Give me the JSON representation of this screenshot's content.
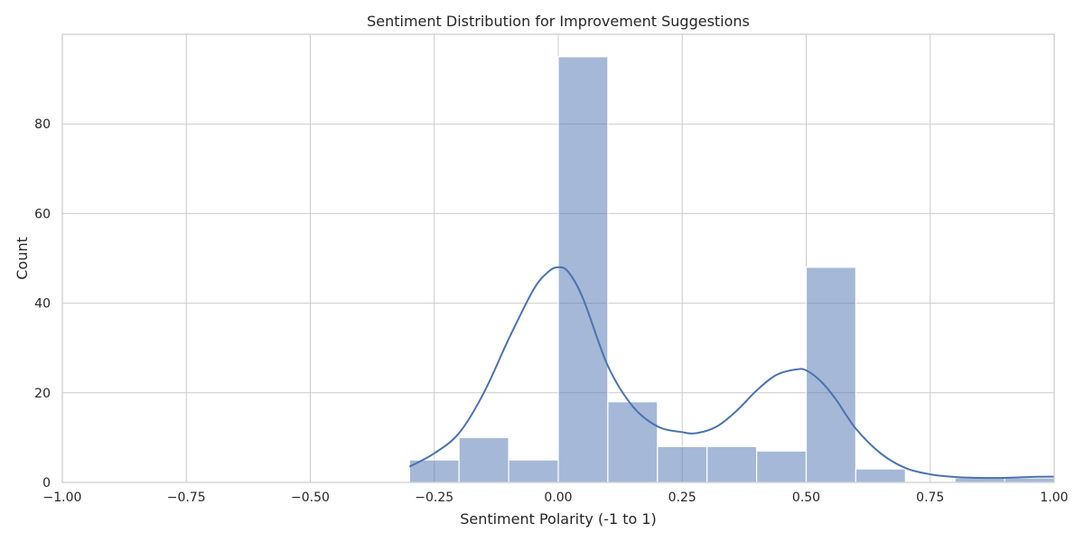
{
  "chart_data": {
    "type": "bar",
    "title": "Sentiment Distribution for Improvement Suggestions",
    "xlabel": "Sentiment Polarity (-1 to 1)",
    "ylabel": "Count",
    "xlim": [
      -1.0,
      1.0
    ],
    "ylim": [
      0,
      100
    ],
    "grid": true,
    "x_ticks": [
      "−1.00",
      "−0.75",
      "−0.50",
      "−0.25",
      "0.00",
      "0.25",
      "0.50",
      "0.75",
      "1.00"
    ],
    "y_ticks": [
      "0",
      "20",
      "40",
      "60",
      "80"
    ],
    "bins": [
      {
        "start": -0.3,
        "end": -0.2,
        "count": 5
      },
      {
        "start": -0.2,
        "end": -0.1,
        "count": 10
      },
      {
        "start": -0.1,
        "end": 0.0,
        "count": 5
      },
      {
        "start": 0.0,
        "end": 0.1,
        "count": 95
      },
      {
        "start": 0.1,
        "end": 0.2,
        "count": 18
      },
      {
        "start": 0.2,
        "end": 0.3,
        "count": 8
      },
      {
        "start": 0.3,
        "end": 0.4,
        "count": 8
      },
      {
        "start": 0.4,
        "end": 0.5,
        "count": 7
      },
      {
        "start": 0.5,
        "end": 0.6,
        "count": 48
      },
      {
        "start": 0.6,
        "end": 0.7,
        "count": 3
      },
      {
        "start": 0.7,
        "end": 0.8,
        "count": 0
      },
      {
        "start": 0.8,
        "end": 0.9,
        "count": 1
      },
      {
        "start": 0.9,
        "end": 1.0,
        "count": 1
      }
    ],
    "kde_curve": {
      "x": [
        -0.3,
        -0.25,
        -0.2,
        -0.15,
        -0.1,
        -0.05,
        -0.02,
        0.0,
        0.02,
        0.05,
        0.1,
        0.15,
        0.2,
        0.25,
        0.28,
        0.32,
        0.36,
        0.4,
        0.44,
        0.48,
        0.5,
        0.53,
        0.56,
        0.6,
        0.65,
        0.7,
        0.75,
        0.8,
        0.85,
        0.9,
        0.95,
        1.0
      ],
      "y": [
        3.5,
        6.5,
        11,
        20,
        32,
        43,
        47,
        48,
        47,
        41,
        26,
        17,
        12.5,
        11.2,
        11,
        12.5,
        16,
        20.5,
        24,
        25.2,
        25,
        22.5,
        18.5,
        12,
        6.5,
        3.2,
        1.8,
        1.2,
        1.0,
        1.0,
        1.2,
        1.3
      ]
    },
    "colors": {
      "bar": "#4c72b0",
      "kde": "#4c72b0",
      "grid": "#cccccc",
      "text": "#262626"
    }
  }
}
